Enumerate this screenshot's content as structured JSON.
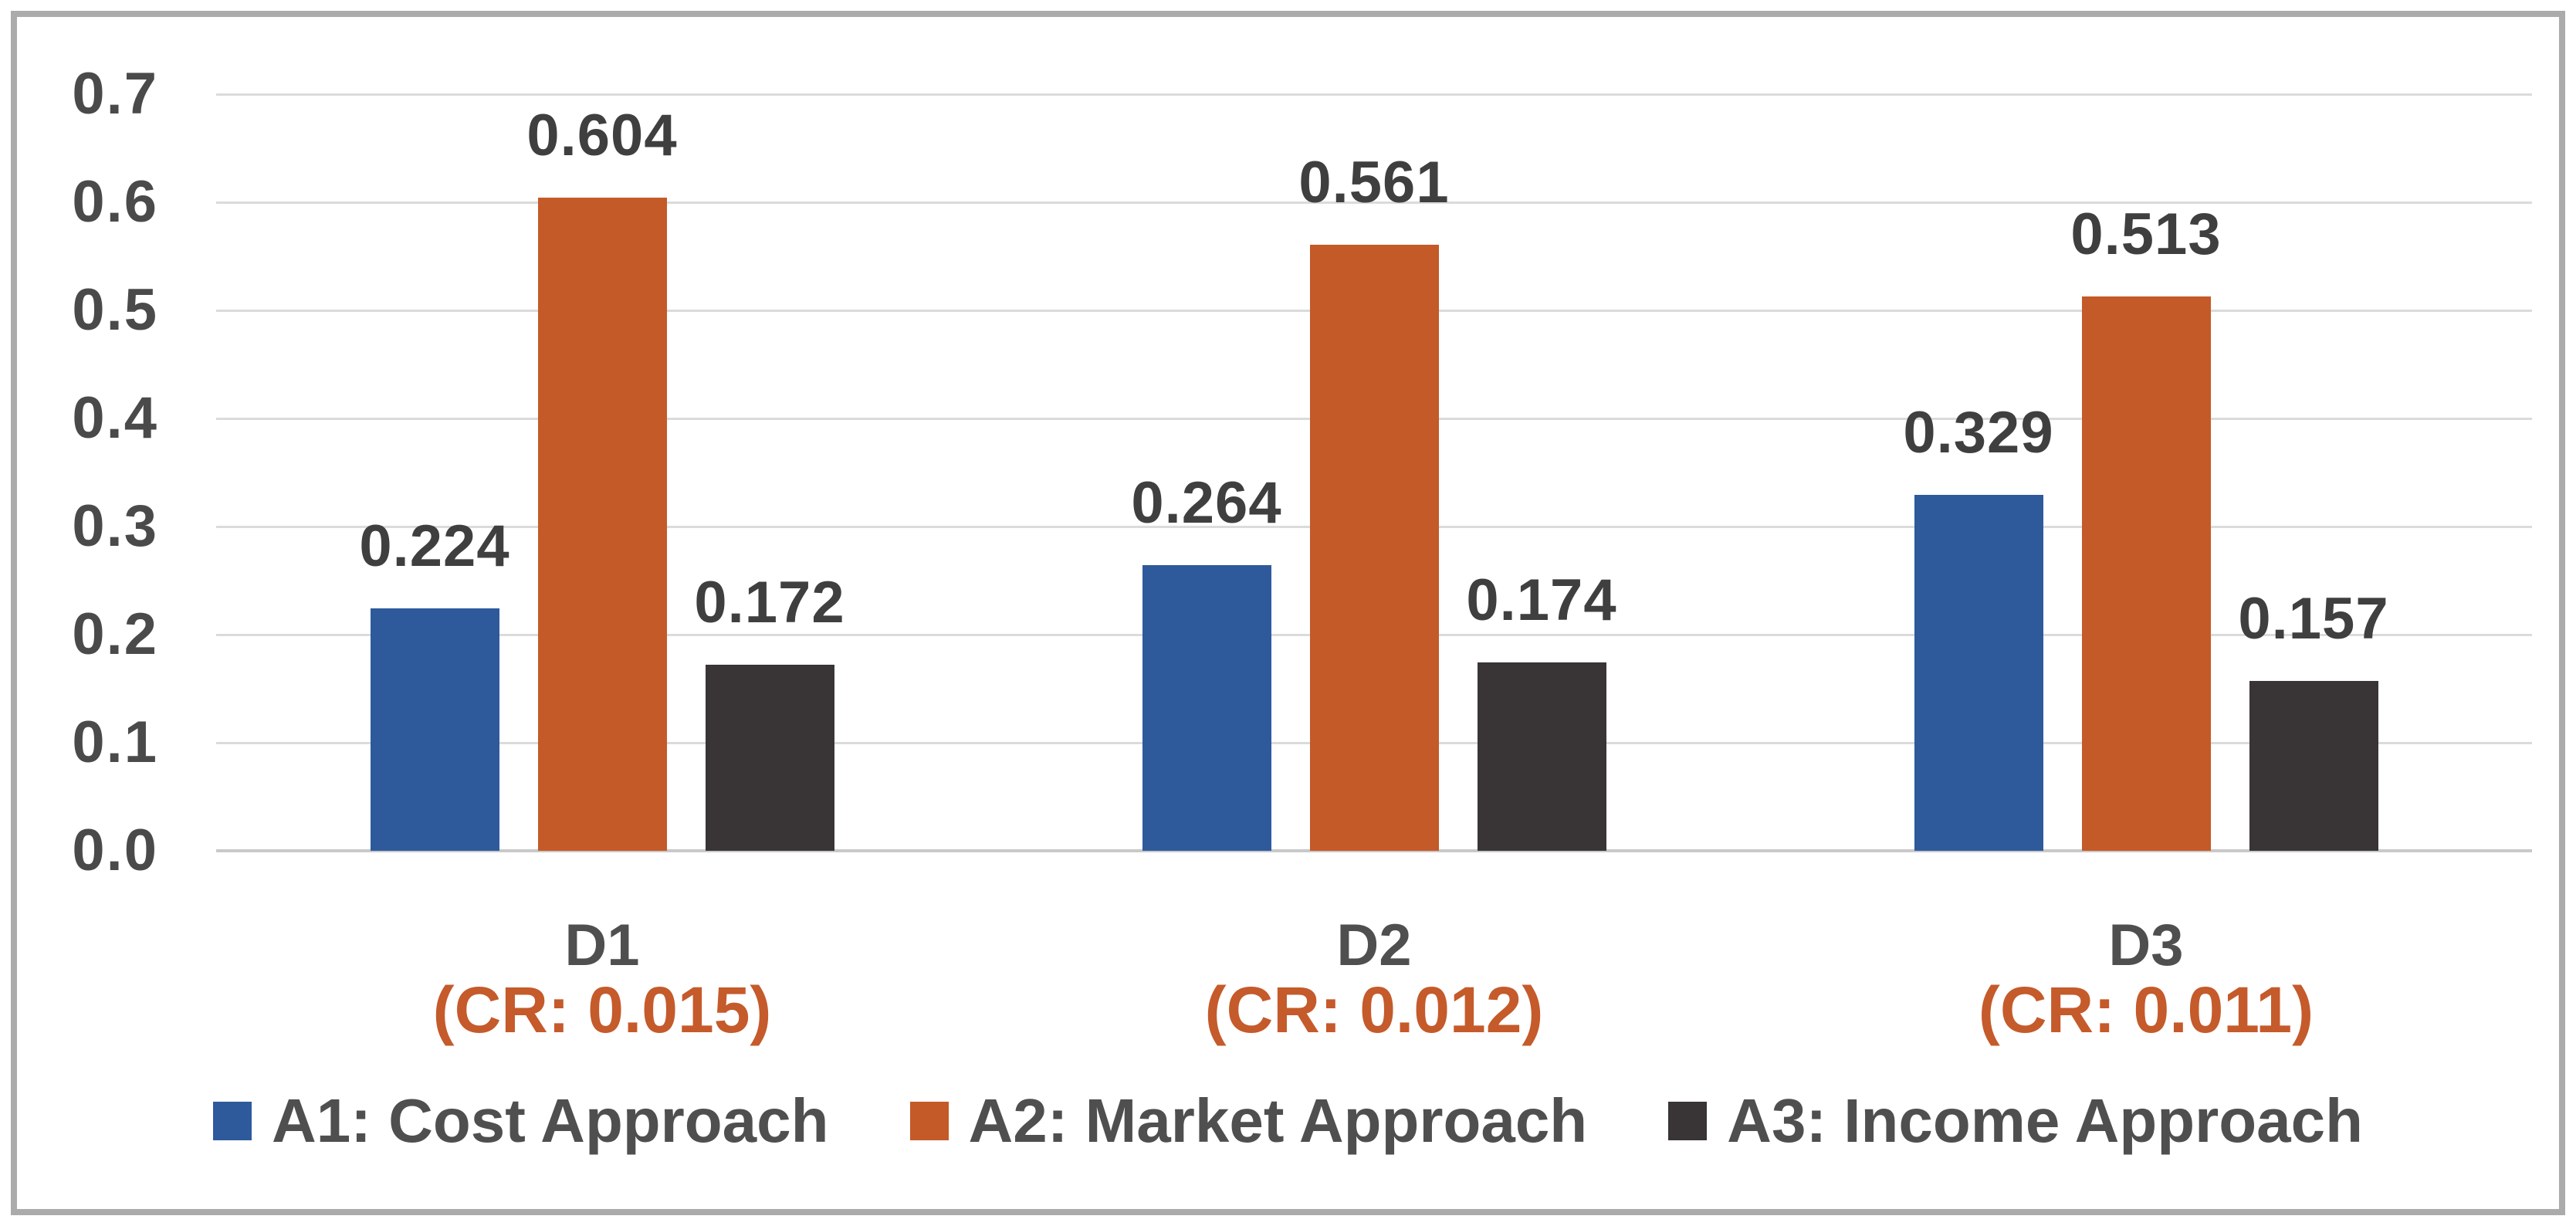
{
  "chart_data": {
    "type": "bar",
    "title": "",
    "categories": [
      "D1",
      "D2",
      "D3"
    ],
    "category_sublabels": [
      "(CR: 0.015)",
      "(CR: 0.012)",
      "(CR: 0.011)"
    ],
    "series": [
      {
        "name": "A1: Cost Approach",
        "color": "#2E5A9C",
        "values": [
          0.224,
          0.264,
          0.329
        ],
        "labels": [
          "0.224",
          "0.264",
          "0.329"
        ]
      },
      {
        "name": "A2: Market Approach",
        "color": "#C45A28",
        "values": [
          0.604,
          0.561,
          0.513
        ],
        "labels": [
          "0.604",
          "0.561",
          "0.513"
        ]
      },
      {
        "name": "A3: Income Approach",
        "color": "#393536",
        "values": [
          0.172,
          0.174,
          0.157
        ],
        "labels": [
          "0.172",
          "0.174",
          "0.157"
        ]
      }
    ],
    "y_ticks": [
      "0.7",
      "0.6",
      "0.5",
      "0.4",
      "0.3",
      "0.2",
      "0.1",
      "0.0"
    ],
    "ylim": [
      0,
      0.7
    ],
    "grid": true,
    "legend_position": "bottom",
    "colors": {
      "gridline": "#DBDBDB",
      "axis_line": "#C9C9C9",
      "tick_text": "#4A4A4A",
      "value_text": "#3F3F3F",
      "category_text": "#4F4F4F",
      "cr_text": "#C55A2B",
      "legend_text": "#4F4F4F",
      "border": "#ABABAB",
      "background": "#FFFFFF"
    }
  }
}
